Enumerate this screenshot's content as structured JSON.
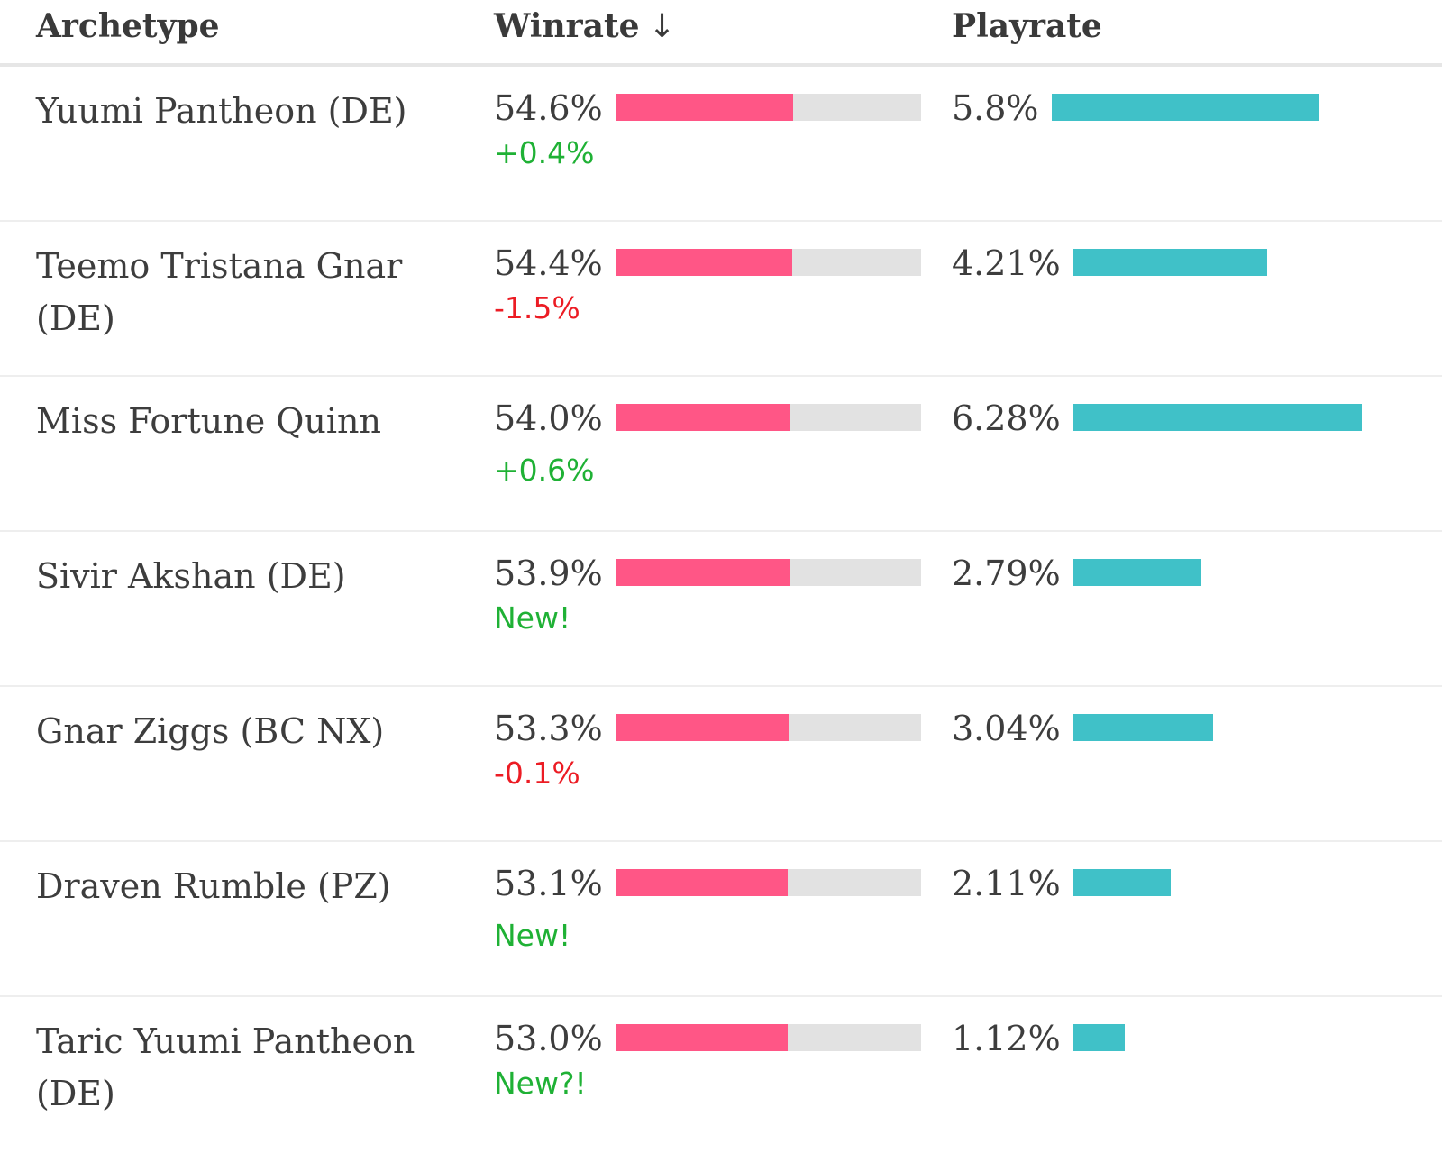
{
  "header": {
    "archetype": "Archetype",
    "winrate": "Winrate",
    "sort_icon": "↓",
    "playrate": "Playrate"
  },
  "colors": {
    "winrate_bar": "#ff5686",
    "winrate_track": "#e2e2e2",
    "playrate_bar": "#40c1c8",
    "positive": "#1fb135",
    "negative": "#ec1c24"
  },
  "rows": [
    {
      "archetype": "Yuumi Pantheon (DE)",
      "winrate": "54.6%",
      "winrate_value": 54.6,
      "change": "+0.4%",
      "change_type": "pos",
      "playrate": "5.8%",
      "playrate_value": 5.8
    },
    {
      "archetype": "Teemo Tristana Gnar (DE)",
      "winrate": "54.4%",
      "winrate_value": 54.4,
      "change": "-1.5%",
      "change_type": "neg",
      "playrate": "4.21%",
      "playrate_value": 4.21
    },
    {
      "archetype": "Miss Fortune Quinn",
      "winrate": "54.0%",
      "winrate_value": 54.0,
      "change": "+0.6%",
      "change_type": "pos",
      "playrate": "6.28%",
      "playrate_value": 6.28
    },
    {
      "archetype": "Sivir Akshan (DE)",
      "winrate": "53.9%",
      "winrate_value": 53.9,
      "change": "New!",
      "change_type": "pos",
      "playrate": "2.79%",
      "playrate_value": 2.79
    },
    {
      "archetype": "Gnar Ziggs (BC NX)",
      "winrate": "53.3%",
      "winrate_value": 53.3,
      "change": "-0.1%",
      "change_type": "neg",
      "playrate": "3.04%",
      "playrate_value": 3.04
    },
    {
      "archetype": "Draven Rumble (PZ)",
      "winrate": "53.1%",
      "winrate_value": 53.1,
      "change": "New!",
      "change_type": "pos",
      "playrate": "2.11%",
      "playrate_value": 2.11
    },
    {
      "archetype": "Taric Yuumi Pantheon (DE)",
      "winrate": "53.0%",
      "winrate_value": 53.0,
      "change": "New?!",
      "change_type": "pos",
      "playrate": "1.12%",
      "playrate_value": 1.12
    }
  ]
}
